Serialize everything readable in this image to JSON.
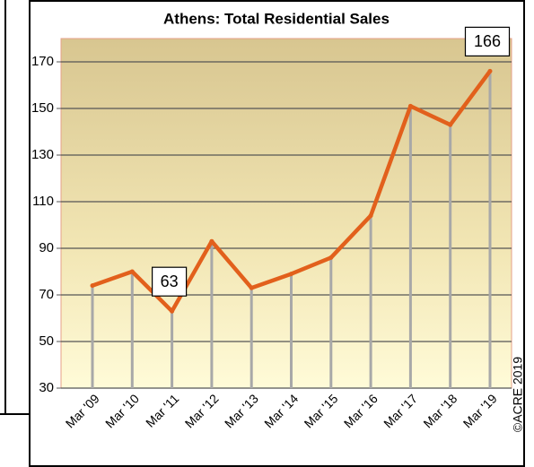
{
  "chart_data": {
    "type": "line",
    "title": "Athens: Total Residential Sales",
    "categories": [
      "Mar '09",
      "Mar '10",
      "Mar '11",
      "Mar '12",
      "Mar '13",
      "Mar '14",
      "Mar '15",
      "Mar '16",
      "Mar '17",
      "Mar '18",
      "Mar '19"
    ],
    "values": [
      74,
      80,
      63,
      93,
      73,
      79,
      86,
      104,
      151,
      143,
      166
    ],
    "labeled_points": [
      2,
      10
    ],
    "color": "#e2601c",
    "ylim": [
      30,
      180
    ],
    "yticks": [
      30,
      50,
      70,
      90,
      110,
      130,
      150,
      170
    ],
    "grid": true,
    "annotation": "©ACRE 2019"
  }
}
